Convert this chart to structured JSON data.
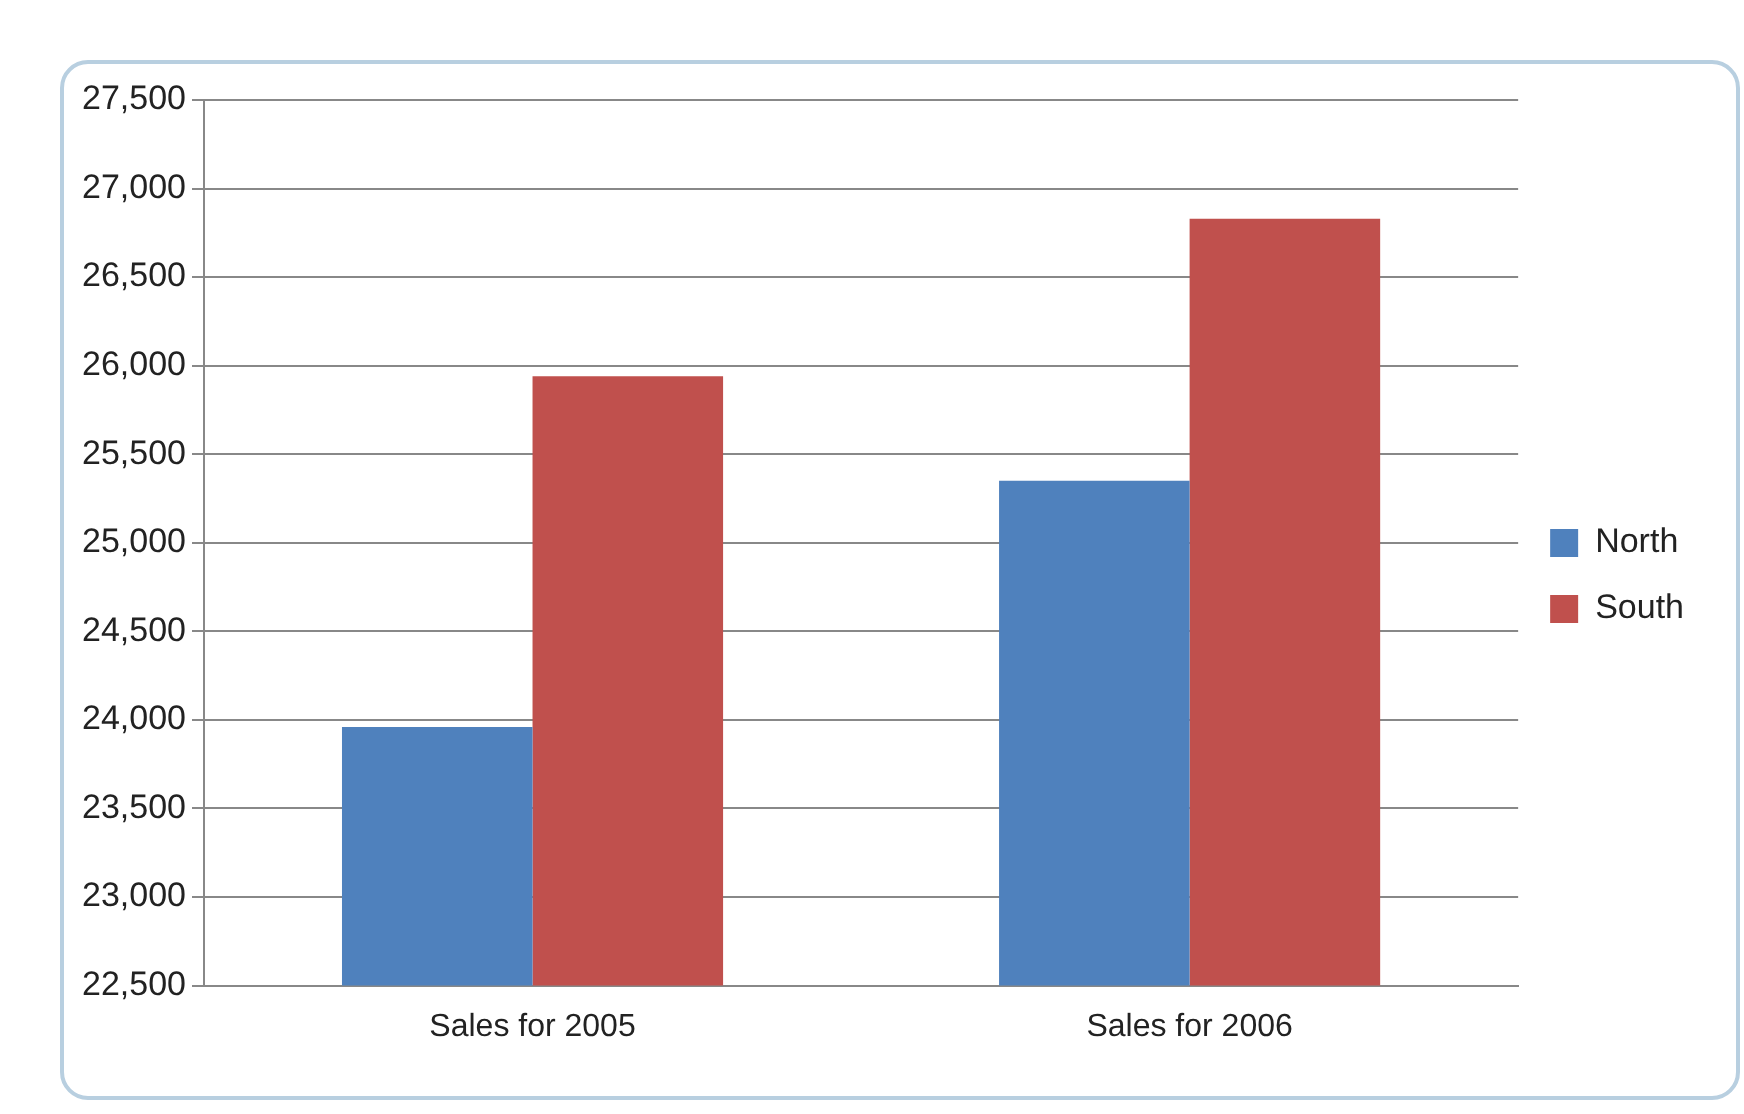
{
  "chart_data": {
    "type": "bar",
    "categories": [
      "Sales for 2005",
      "Sales for 2006"
    ],
    "series": [
      {
        "name": "North",
        "color": "#4f81bd",
        "values": [
          23960,
          25350
        ]
      },
      {
        "name": "South",
        "color": "#c0504d",
        "values": [
          25940,
          26830
        ]
      }
    ],
    "ylim": [
      22500,
      27500
    ],
    "yticks": [
      {
        "value": 22500,
        "label": "22,500"
      },
      {
        "value": 23000,
        "label": "23,000"
      },
      {
        "value": 23500,
        "label": "23,500"
      },
      {
        "value": 24000,
        "label": "24,000"
      },
      {
        "value": 24500,
        "label": "24,500"
      },
      {
        "value": 25000,
        "label": "25,000"
      },
      {
        "value": 25500,
        "label": "25,500"
      },
      {
        "value": 26000,
        "label": "26,000"
      },
      {
        "value": 26500,
        "label": "26,500"
      },
      {
        "value": 27000,
        "label": "27,000"
      },
      {
        "value": 27500,
        "label": "27,500"
      }
    ],
    "grid": "y",
    "legend": "right"
  }
}
